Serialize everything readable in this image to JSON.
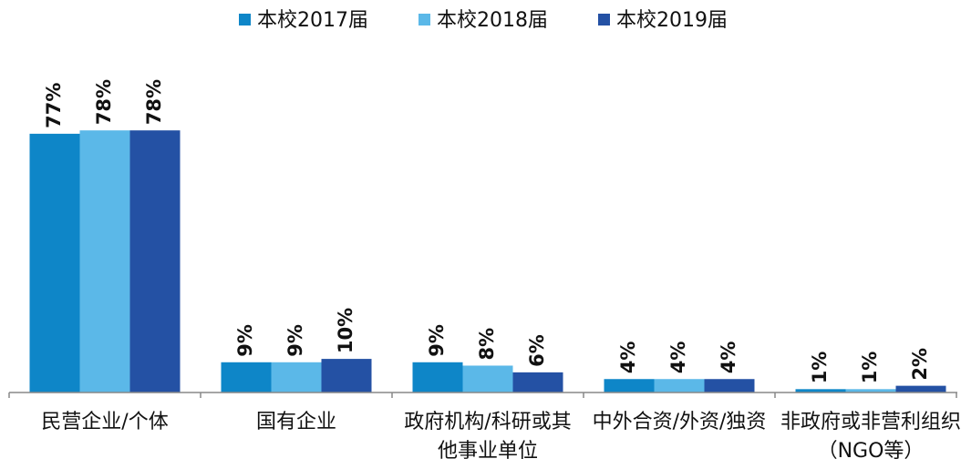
{
  "chart_data": {
    "type": "bar",
    "categories": [
      "民营企业/个体",
      "国有企业",
      "政府机构/科研或其他事业单位",
      "中外合资/外资/独资",
      "非政府或非营利组织（NGO等）"
    ],
    "series": [
      {
        "name": "本校2017届",
        "color": "#0e86c8",
        "values": [
          77,
          9,
          9,
          4,
          1
        ],
        "value_labels": [
          "77%",
          "9%",
          "9%",
          "4%",
          "1%"
        ]
      },
      {
        "name": "本校2018届",
        "color": "#5bb8e8",
        "values": [
          78,
          9,
          8,
          4,
          1
        ],
        "value_labels": [
          "78%",
          "9%",
          "8%",
          "4%",
          "1%"
        ]
      },
      {
        "name": "本校2019届",
        "color": "#2451a4",
        "values": [
          78,
          10,
          6,
          4,
          2
        ],
        "value_labels": [
          "78%",
          "10%",
          "6%",
          "4%",
          "2%"
        ]
      }
    ],
    "ylim": [
      0,
      100
    ],
    "legend": "top"
  }
}
